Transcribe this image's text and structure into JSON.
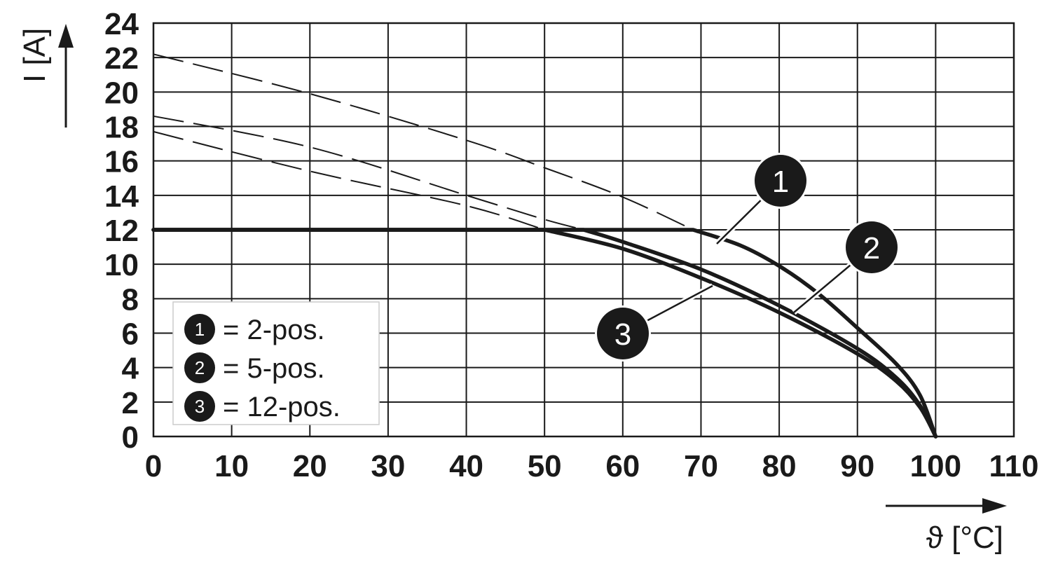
{
  "chart_data": {
    "type": "line",
    "title": "",
    "xlabel": "ϑ [°C]",
    "ylabel": "I [A]",
    "xlim": [
      0,
      110
    ],
    "ylim": [
      0,
      24
    ],
    "x_ticks": [
      0,
      10,
      20,
      30,
      40,
      50,
      60,
      70,
      80,
      90,
      100,
      110
    ],
    "y_ticks": [
      0,
      2,
      4,
      6,
      8,
      10,
      12,
      14,
      16,
      18,
      20,
      22,
      24
    ],
    "grid": true,
    "legend_position": "bottom-left",
    "colors": {
      "line": "#1a1a1a",
      "grid": "#1a1a1a",
      "background": "#ffffff"
    },
    "series": [
      {
        "marker": "1",
        "legend_label": "= 2-pos.",
        "derating_curve": [
          [
            0,
            12
          ],
          [
            69,
            12
          ],
          [
            75,
            11.1
          ],
          [
            80,
            9.9
          ],
          [
            85,
            8.3
          ],
          [
            90,
            6.3
          ],
          [
            95,
            4.2
          ],
          [
            98,
            2.4
          ],
          [
            100,
            0
          ]
        ],
        "dashed_extension": [
          [
            0,
            22.2
          ],
          [
            20,
            19.9
          ],
          [
            40,
            17.2
          ],
          [
            50,
            15.6
          ],
          [
            60,
            13.9
          ],
          [
            69,
            12
          ]
        ]
      },
      {
        "marker": "2",
        "legend_label": "= 5-pos.",
        "derating_curve": [
          [
            0,
            12
          ],
          [
            55,
            12
          ],
          [
            60,
            11.3
          ],
          [
            70,
            9.7
          ],
          [
            80,
            7.6
          ],
          [
            90,
            5.1
          ],
          [
            95,
            3.4
          ],
          [
            98,
            1.8
          ],
          [
            100,
            0
          ]
        ],
        "dashed_extension": [
          [
            0,
            18.6
          ],
          [
            20,
            16.8
          ],
          [
            40,
            14.0
          ],
          [
            50,
            12.6
          ],
          [
            55,
            12
          ]
        ]
      },
      {
        "marker": "3",
        "legend_label": "= 12-pos.",
        "derating_curve": [
          [
            0,
            12
          ],
          [
            50,
            12
          ],
          [
            60,
            10.9
          ],
          [
            70,
            9.2
          ],
          [
            80,
            7.2
          ],
          [
            90,
            4.8
          ],
          [
            95,
            3.2
          ],
          [
            98,
            1.7
          ],
          [
            100,
            0
          ]
        ],
        "dashed_extension": [
          [
            0,
            17.7
          ],
          [
            20,
            15.4
          ],
          [
            40,
            13.4
          ],
          [
            50,
            12
          ]
        ]
      }
    ]
  }
}
